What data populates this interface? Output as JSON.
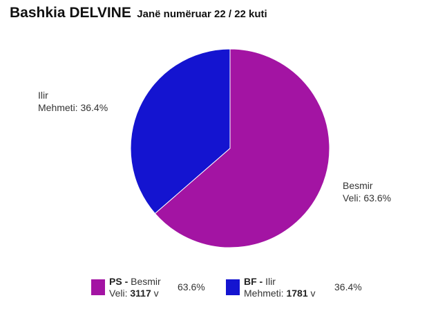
{
  "title": "Bashkia DELVINE",
  "subtitle": "Janë numëruar 22 / 22 kuti",
  "colors": {
    "ps": "#a314a3",
    "bf": "#1414d0"
  },
  "chart_data": {
    "type": "pie",
    "slices": [
      {
        "party": "PS",
        "name_line1": "Besmir",
        "name_line2": "Veli",
        "votes": 3117,
        "percent": 63.6,
        "pct_label": "63.6%",
        "color": "#a314a3"
      },
      {
        "party": "BF",
        "name_line1": "Ilir",
        "name_line2": "Mehmeti",
        "votes": 1781,
        "percent": 36.4,
        "pct_label": "36.4%",
        "color": "#1414d0"
      }
    ]
  },
  "slice_labels": [
    {
      "line1": "Besmir",
      "line2": "Veli: 63.6%"
    },
    {
      "line1": "Ilir",
      "line2": "Mehmeti: 36.4%"
    }
  ],
  "legend": [
    {
      "party": "PS -",
      "first": "Besmir",
      "last": "Veli:",
      "votes": "3117",
      "unit": "v",
      "pct": "63.6%"
    },
    {
      "party": "BF -",
      "first": "Ilir",
      "last": "Mehmeti:",
      "votes": "1781",
      "unit": "v",
      "pct": "36.4%"
    }
  ]
}
